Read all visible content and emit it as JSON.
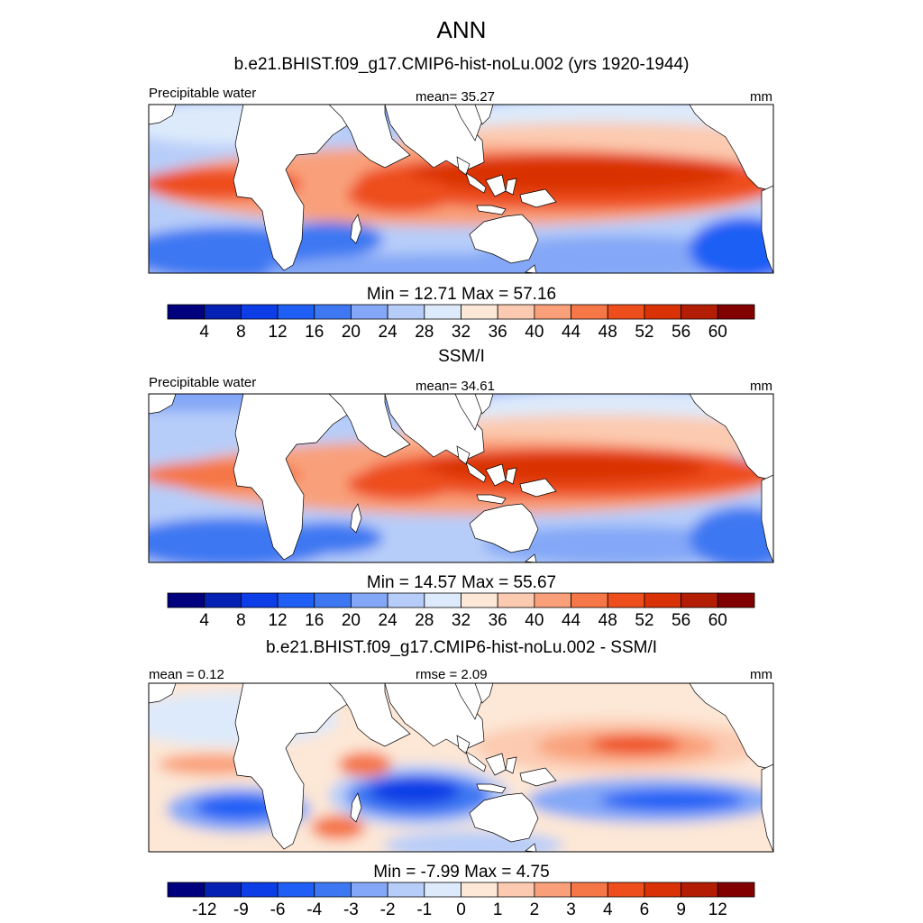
{
  "figure_title": "ANN",
  "panels": [
    {
      "title": "b.e21.BHIST.f09_g17.CMIP6-hist-noLu.002 (yrs 1920-1944)",
      "left_label": "Precipitable water",
      "center_label": "mean=  35.27",
      "right_label": "mm",
      "minmax": "Min =  12.71 Max =  57.16",
      "colorbar_ticks": [
        "4",
        "8",
        "12",
        "16",
        "20",
        "24",
        "28",
        "32",
        "36",
        "40",
        "44",
        "48",
        "52",
        "56",
        "60"
      ],
      "colors": [
        "#00007f",
        "#0521b4",
        "#0d3de6",
        "#1f5ff5",
        "#3d78f2",
        "#84a8f7",
        "#b7cdf9",
        "#ddeafb",
        "#fde7d6",
        "#fccab0",
        "#f9a07a",
        "#f57647",
        "#ee4d1c",
        "#d93206",
        "#b31d04",
        "#820000"
      ]
    },
    {
      "title": "SSM/I",
      "left_label": "Precipitable water",
      "center_label": "mean=  34.61",
      "right_label": "mm",
      "minmax": "Min =  14.57 Max =  55.67",
      "colorbar_ticks": [
        "4",
        "8",
        "12",
        "16",
        "20",
        "24",
        "28",
        "32",
        "36",
        "40",
        "44",
        "48",
        "52",
        "56",
        "60"
      ],
      "colors": [
        "#00007f",
        "#0521b4",
        "#0d3de6",
        "#1f5ff5",
        "#3d78f2",
        "#84a8f7",
        "#b7cdf9",
        "#ddeafb",
        "#fde7d6",
        "#fccab0",
        "#f9a07a",
        "#f57647",
        "#ee4d1c",
        "#d93206",
        "#b31d04",
        "#820000"
      ]
    },
    {
      "title": "b.e21.BHIST.f09_g17.CMIP6-hist-noLu.002 - SSM/I",
      "left_label": "mean =   0.12",
      "center_label": "rmse =   2.09",
      "right_label": "mm",
      "minmax": "Min =  -7.99 Max =   4.75",
      "colorbar_ticks": [
        "-12",
        "-9",
        "-6",
        "-4",
        "-3",
        "-2",
        "-1",
        "0",
        "1",
        "2",
        "3",
        "4",
        "6",
        "9",
        "12"
      ],
      "colors": [
        "#00007f",
        "#0521b4",
        "#0d3de6",
        "#1f5ff5",
        "#3d78f2",
        "#84a8f7",
        "#b7cdf9",
        "#ddeafb",
        "#fde7d6",
        "#fccab0",
        "#f9a07a",
        "#f57647",
        "#ee4d1c",
        "#d93206",
        "#b31d04",
        "#820000"
      ]
    }
  ]
}
